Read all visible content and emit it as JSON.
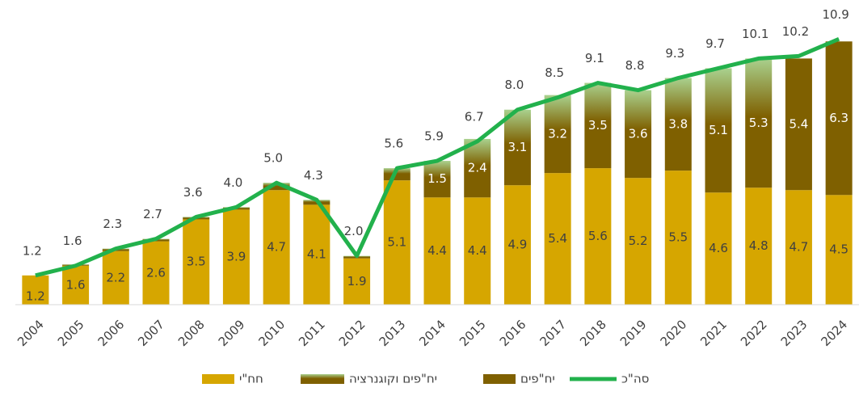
{
  "chart_data": {
    "type": "bar",
    "categories": [
      "2004",
      "2005",
      "2006",
      "2007",
      "2008",
      "2009",
      "2010",
      "2011",
      "2012",
      "2013",
      "2014",
      "2015",
      "2016",
      "2017",
      "2018",
      "2019",
      "2020",
      "2021",
      "2022",
      "2023",
      "2024"
    ],
    "ylim": [
      0,
      12.5
    ],
    "series": [
      {
        "name": "חח\"י",
        "type": "bar",
        "color": "#d6a600",
        "values": [
          1.2,
          1.6,
          2.2,
          2.6,
          3.5,
          3.9,
          4.7,
          4.1,
          1.9,
          5.1,
          4.4,
          4.4,
          4.9,
          5.4,
          5.6,
          5.2,
          5.5,
          4.6,
          4.8,
          4.7,
          4.5
        ],
        "value_labels": [
          "1.2",
          "1.6",
          "2.2",
          "2.6",
          "3.5",
          "3.9",
          "4.7",
          "4.1",
          "1.9",
          "5.1",
          "4.4",
          "4.4",
          "4.9",
          "5.4",
          "5.6",
          "5.2",
          "5.5",
          "4.6",
          "4.8",
          "4.7",
          "4.5"
        ]
      },
      {
        "name": "יח\"פים וקוגנרציה",
        "type": "bar",
        "color": "#7f6000",
        "gradient_to": "#a9d18e",
        "values": [
          0,
          0.05,
          0.1,
          0.1,
          0.1,
          0.1,
          0.3,
          0.2,
          0.1,
          0.5,
          1.5,
          2.4,
          3.1,
          3.2,
          3.5,
          3.6,
          3.8,
          5.1,
          5.3,
          null,
          null
        ],
        "value_labels": [
          null,
          null,
          null,
          null,
          null,
          null,
          null,
          null,
          null,
          null,
          "1.5",
          "2.4",
          "3.1",
          "3.2",
          "3.5",
          "3.6",
          "3.8",
          "5.1",
          "5.3",
          null,
          null
        ]
      },
      {
        "name": "יח\"פים",
        "type": "bar",
        "color": "#7f6000",
        "values": [
          null,
          null,
          null,
          null,
          null,
          null,
          null,
          null,
          null,
          null,
          null,
          null,
          null,
          null,
          null,
          null,
          null,
          null,
          null,
          5.4,
          6.3
        ],
        "value_labels": [
          null,
          null,
          null,
          null,
          null,
          null,
          null,
          null,
          null,
          null,
          null,
          null,
          null,
          null,
          null,
          null,
          null,
          null,
          null,
          "5.4",
          "6.3"
        ]
      },
      {
        "name": "סה\"כ",
        "type": "line",
        "color": "#22b14c",
        "values": [
          1.2,
          1.6,
          2.3,
          2.7,
          3.6,
          4.0,
          5.0,
          4.3,
          2.0,
          5.6,
          5.9,
          6.7,
          8.0,
          8.5,
          9.1,
          8.8,
          9.3,
          9.7,
          10.1,
          10.2,
          10.9
        ],
        "value_labels": [
          "1.2",
          "1.6",
          "2.3",
          "2.7",
          "3.6",
          "4.0",
          "5.0",
          "4.3",
          "2.0",
          "5.6",
          "5.9",
          "6.7",
          "8.0",
          "8.5",
          "9.1",
          "8.8",
          "9.3",
          "9.7",
          "10.1",
          "10.2",
          "10.9"
        ]
      }
    ]
  }
}
